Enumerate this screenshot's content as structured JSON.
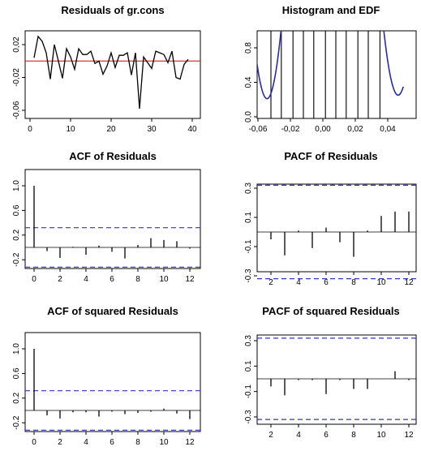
{
  "chart_data": [
    {
      "type": "line",
      "title": "Residuals of gr.cons",
      "xlim": [
        0,
        40
      ],
      "ylim": [
        -0.06,
        0.04
      ],
      "xticks": [
        "0",
        "10",
        "20",
        "30",
        "40"
      ],
      "yticks": [
        "-0,06",
        "-0,02",
        "0,02"
      ],
      "y_tick_values": [
        -0.06,
        -0.02,
        0.02
      ],
      "x": [
        1,
        2,
        3,
        4,
        5,
        6,
        7,
        8,
        9,
        10,
        11,
        12,
        13,
        14,
        15,
        16,
        17,
        18,
        19,
        20,
        21,
        22,
        23,
        24,
        25,
        26,
        27,
        28,
        29,
        30,
        31,
        32,
        33,
        34,
        35,
        36,
        37,
        38,
        39
      ],
      "values": [
        0.004,
        0.03,
        0.024,
        0.01,
        -0.022,
        0.02,
        0.0,
        -0.021,
        0.015,
        0.005,
        -0.01,
        0.015,
        0.008,
        0.008,
        0.012,
        -0.003,
        0.0,
        -0.016,
        -0.006,
        0.01,
        -0.008,
        0.007,
        0.007,
        0.01,
        -0.017,
        0.01,
        -0.058,
        0.005,
        -0.002,
        -0.009,
        0.012,
        0.01,
        0.008,
        -0.002,
        0.012,
        -0.02,
        -0.022,
        -0.004,
        0.002
      ],
      "reference_line": {
        "y": 0,
        "color": "#e03030"
      },
      "line_color": "#000000"
    },
    {
      "type": "histogram",
      "title": "Histogram and EDF",
      "xlim": [
        -0.06,
        0.04
      ],
      "ylim": [
        0,
        1
      ],
      "xticks": [
        "-0,06",
        "-0,02",
        "0,00",
        "0,02",
        "0,04"
      ],
      "yticks": [
        "0,0",
        "0,4",
        "0,8"
      ],
      "y_tick_values": [
        0,
        0.4,
        0.8
      ],
      "bars_x": [
        -0.05,
        -0.042,
        -0.033,
        -0.025,
        -0.017,
        -0.008,
        0.0,
        0.008,
        0.017,
        0.025,
        0.034
      ],
      "edf_color": "#2a2aaa"
    },
    {
      "type": "bar",
      "title": "ACF of Residuals",
      "lags": [
        0,
        1,
        2,
        3,
        4,
        5,
        6,
        7,
        8,
        9,
        10,
        11,
        12
      ],
      "values": [
        1.0,
        -0.06,
        -0.17,
        0.01,
        -0.12,
        0.03,
        -0.07,
        -0.18,
        0.04,
        0.15,
        0.12,
        0.1,
        -0.02
      ],
      "xticks": [
        "0",
        "2",
        "4",
        "6",
        "8",
        "10",
        "12"
      ],
      "yticks": [
        "-0.2",
        "0.2",
        "0.6",
        "1.0"
      ],
      "y_tick_values": [
        -0.2,
        0.2,
        0.6,
        1.0
      ],
      "ylim": [
        -0.35,
        1.12
      ],
      "ci": 0.32,
      "ci_color": "#3333cc"
    },
    {
      "type": "bar",
      "title": "PACF of Residuals",
      "lags": [
        1,
        2,
        3,
        4,
        5,
        6,
        7,
        8,
        9,
        10,
        11,
        12
      ],
      "values": [
        -0.05,
        -0.16,
        0.01,
        -0.11,
        0.03,
        -0.07,
        -0.17,
        0.01,
        0.11,
        0.14,
        0.14,
        0.09
      ],
      "xticks": [
        "2",
        "4",
        "6",
        "8",
        "10",
        "12"
      ],
      "yticks": [
        "-0.3",
        "-0.1",
        "0.1",
        "0.3"
      ],
      "y_tick_values": [
        -0.3,
        -0.1,
        0.1,
        0.3
      ],
      "ylim": [
        -0.34,
        0.34
      ],
      "ci": 0.32,
      "ci_color": "#3333cc"
    },
    {
      "type": "bar",
      "title": "ACF of squared Residuals",
      "lags": [
        0,
        1,
        2,
        3,
        4,
        5,
        6,
        7,
        8,
        9,
        10,
        11,
        12
      ],
      "values": [
        1.0,
        -0.08,
        -0.13,
        -0.03,
        -0.03,
        -0.1,
        -0.02,
        -0.06,
        -0.04,
        -0.02,
        0.03,
        -0.05,
        -0.14
      ],
      "xticks": [
        "0",
        "2",
        "4",
        "6",
        "8",
        "10",
        "12"
      ],
      "yticks": [
        "-0.2",
        "0.2",
        "0.6",
        "1.0"
      ],
      "y_tick_values": [
        -0.2,
        0.2,
        0.6,
        1.0
      ],
      "ylim": [
        -0.35,
        1.12
      ],
      "ci": 0.32,
      "ci_color": "#3333cc"
    },
    {
      "type": "bar",
      "title": "PACF of squared Residuals",
      "lags": [
        1,
        2,
        3,
        4,
        5,
        6,
        7,
        8,
        9,
        10,
        11,
        12
      ],
      "values": [
        -0.06,
        -0.13,
        -0.01,
        -0.01,
        -0.12,
        -0.01,
        -0.08,
        -0.08,
        0.0,
        0.06,
        -0.01,
        -0.15
      ],
      "xticks": [
        "2",
        "4",
        "6",
        "8",
        "10",
        "12"
      ],
      "yticks": [
        "-0.3",
        "-0.1",
        "0.1",
        "0.3"
      ],
      "y_tick_values": [
        -0.3,
        -0.1,
        0.1,
        0.3
      ],
      "ylim": [
        -0.34,
        0.34
      ],
      "ci": 0.32,
      "ci_color": "#3333cc"
    }
  ]
}
